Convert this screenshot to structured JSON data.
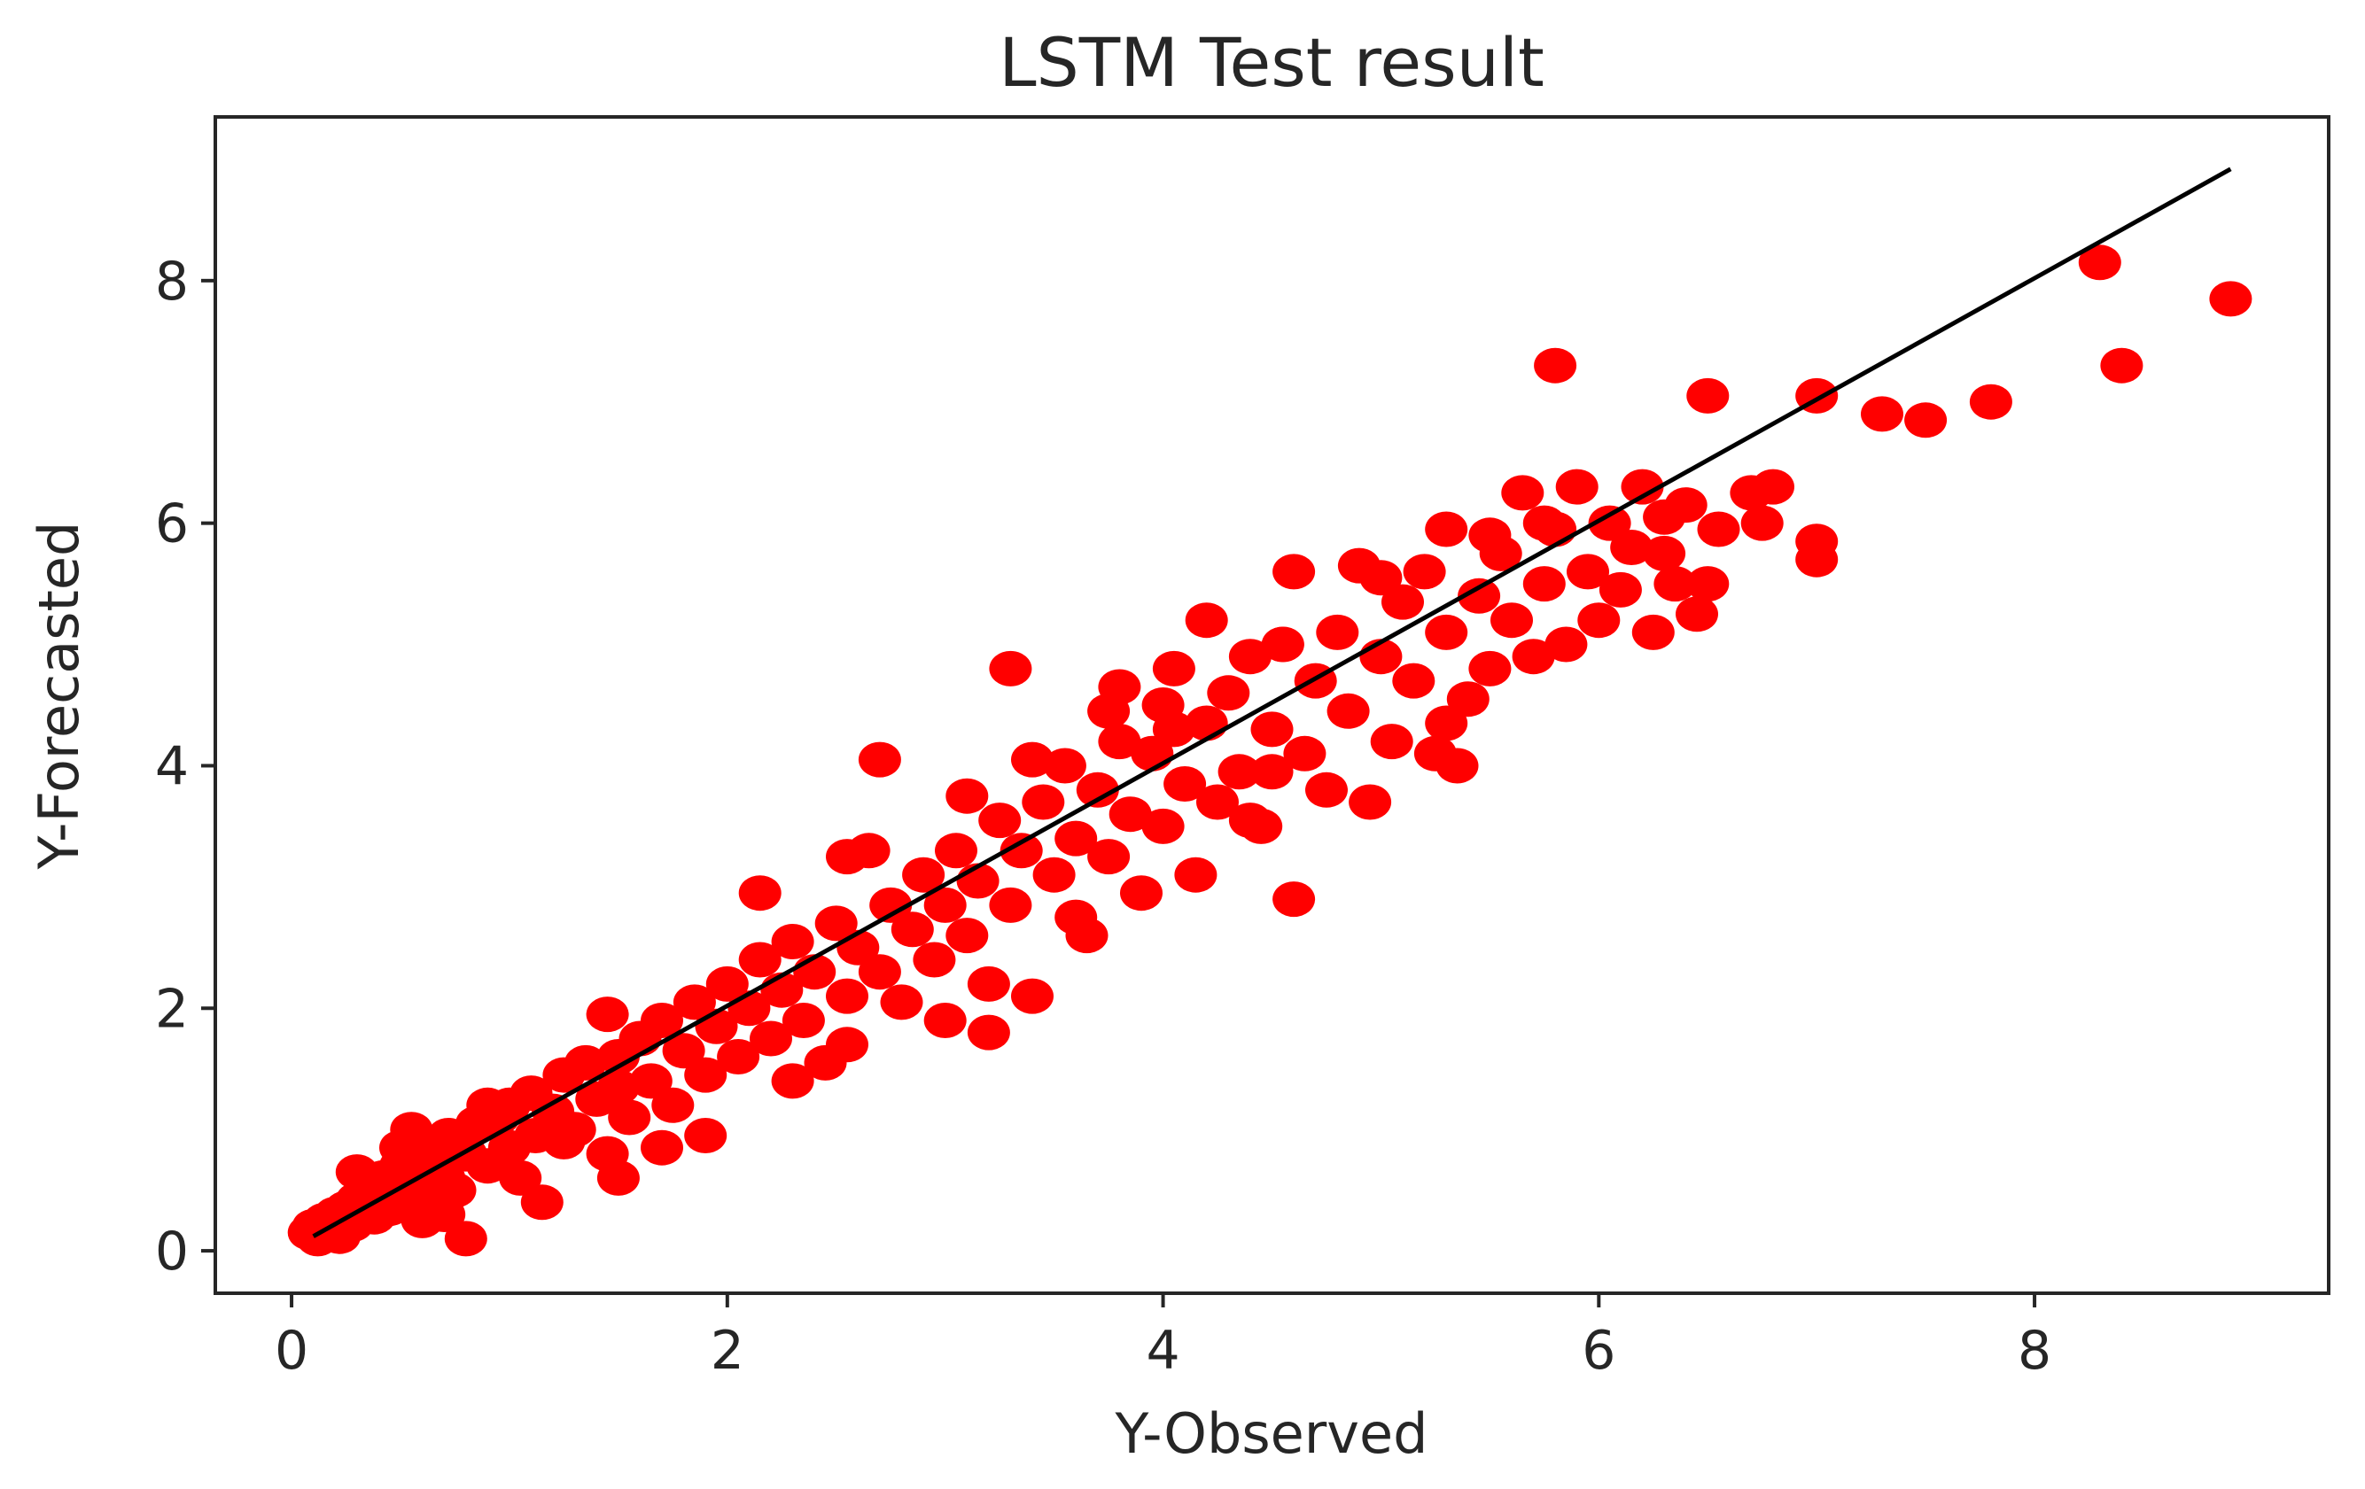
{
  "chart_data": {
    "type": "scatter",
    "title": "LSTM Test result",
    "xlabel": "Y-Observed",
    "ylabel": "Y-Forecasted",
    "xlim": [
      -0.35,
      9.35
    ],
    "ylim": [
      -0.35,
      9.35
    ],
    "x_ticks": [
      0,
      2,
      4,
      6,
      8
    ],
    "y_ticks": [
      0,
      2,
      4,
      6,
      8
    ],
    "tick_labels_x": [
      "0",
      "2",
      "4",
      "6",
      "8"
    ],
    "tick_labels_y": [
      "0",
      "2",
      "4",
      "6",
      "8"
    ],
    "grid": false,
    "legend": "none",
    "colors": {
      "points": "#ff0000",
      "fit_line": "#000000",
      "axes": "#262626"
    },
    "fit_line": {
      "x": [
        0.1,
        8.9
      ],
      "y": [
        0.12,
        8.92
      ]
    },
    "series": [
      {
        "points": [
          [
            0.08,
            0.15
          ],
          [
            0.1,
            0.2
          ],
          [
            0.12,
            0.1
          ],
          [
            0.15,
            0.25
          ],
          [
            0.18,
            0.18
          ],
          [
            0.2,
            0.3
          ],
          [
            0.22,
            0.12
          ],
          [
            0.25,
            0.35
          ],
          [
            0.28,
            0.22
          ],
          [
            0.3,
            0.42
          ],
          [
            0.32,
            0.3
          ],
          [
            0.35,
            0.5
          ],
          [
            0.38,
            0.28
          ],
          [
            0.4,
            0.45
          ],
          [
            0.42,
            0.6
          ],
          [
            0.45,
            0.35
          ],
          [
            0.48,
            0.55
          ],
          [
            0.5,
            0.7
          ],
          [
            0.55,
            0.48
          ],
          [
            0.6,
            0.72
          ],
          [
            0.62,
            0.4
          ],
          [
            0.65,
            0.85
          ],
          [
            0.7,
            0.6
          ],
          [
            0.72,
            0.95
          ],
          [
            0.75,
            0.5
          ],
          [
            0.8,
            0.1
          ],
          [
            0.8,
            0.8
          ],
          [
            0.85,
            1.05
          ],
          [
            0.9,
            0.7
          ],
          [
            0.95,
            1.1
          ],
          [
            1.0,
            0.85
          ],
          [
            1.0,
            1.2
          ],
          [
            1.05,
            0.6
          ],
          [
            1.1,
            1.3
          ],
          [
            1.12,
            0.95
          ],
          [
            1.15,
            0.4
          ],
          [
            1.2,
            1.15
          ],
          [
            1.25,
            1.45
          ],
          [
            1.3,
            1.0
          ],
          [
            1.35,
            1.55
          ],
          [
            1.4,
            1.25
          ],
          [
            1.45,
            0.8
          ],
          [
            1.5,
            1.6
          ],
          [
            1.5,
            1.35
          ],
          [
            1.5,
            0.6
          ],
          [
            1.55,
            1.1
          ],
          [
            1.6,
            1.75
          ],
          [
            1.65,
            1.4
          ],
          [
            1.7,
            1.9
          ],
          [
            1.75,
            1.2
          ],
          [
            1.8,
            1.65
          ],
          [
            1.85,
            2.05
          ],
          [
            1.9,
            1.45
          ],
          [
            1.9,
            0.95
          ],
          [
            1.95,
            1.85
          ],
          [
            2.0,
            2.2
          ],
          [
            2.05,
            1.6
          ],
          [
            2.1,
            2.0
          ],
          [
            2.15,
            2.4
          ],
          [
            2.2,
            1.75
          ],
          [
            2.25,
            2.15
          ],
          [
            2.3,
            2.55
          ],
          [
            2.35,
            1.9
          ],
          [
            2.4,
            2.3
          ],
          [
            2.45,
            1.55
          ],
          [
            2.5,
            2.7
          ],
          [
            2.55,
            2.1
          ],
          [
            2.6,
            2.5
          ],
          [
            2.65,
            3.3
          ],
          [
            2.7,
            2.3
          ],
          [
            2.7,
            4.05
          ],
          [
            2.75,
            2.85
          ],
          [
            2.8,
            2.05
          ],
          [
            2.85,
            2.65
          ],
          [
            2.9,
            3.1
          ],
          [
            2.95,
            2.4
          ],
          [
            3.0,
            2.85
          ],
          [
            3.0,
            1.9
          ],
          [
            3.05,
            3.3
          ],
          [
            3.1,
            2.6
          ],
          [
            3.1,
            3.75
          ],
          [
            3.15,
            3.05
          ],
          [
            3.2,
            1.8
          ],
          [
            3.2,
            2.2
          ],
          [
            3.25,
            3.55
          ],
          [
            3.3,
            2.85
          ],
          [
            3.3,
            4.8
          ],
          [
            3.35,
            3.3
          ],
          [
            3.4,
            2.1
          ],
          [
            3.45,
            3.7
          ],
          [
            3.5,
            3.1
          ],
          [
            3.55,
            4.0
          ],
          [
            3.6,
            3.4
          ],
          [
            3.65,
            2.6
          ],
          [
            3.7,
            3.8
          ],
          [
            3.75,
            3.25
          ],
          [
            3.8,
            4.2
          ],
          [
            3.8,
            4.65
          ],
          [
            3.85,
            3.6
          ],
          [
            3.9,
            2.95
          ],
          [
            3.95,
            4.1
          ],
          [
            4.0,
            3.5
          ],
          [
            4.0,
            4.5
          ],
          [
            4.05,
            4.8
          ],
          [
            4.1,
            3.85
          ],
          [
            4.15,
            3.1
          ],
          [
            4.2,
            4.35
          ],
          [
            4.2,
            5.2
          ],
          [
            4.25,
            3.7
          ],
          [
            4.3,
            4.6
          ],
          [
            4.35,
            3.95
          ],
          [
            4.4,
            4.9
          ],
          [
            4.45,
            3.5
          ],
          [
            4.5,
            4.3
          ],
          [
            4.55,
            5.0
          ],
          [
            4.6,
            2.9
          ],
          [
            4.6,
            5.6
          ],
          [
            4.65,
            4.1
          ],
          [
            4.7,
            4.7
          ],
          [
            4.75,
            3.8
          ],
          [
            4.8,
            5.1
          ],
          [
            4.85,
            4.45
          ],
          [
            4.9,
            5.65
          ],
          [
            4.95,
            3.7
          ],
          [
            5.0,
            4.9
          ],
          [
            5.05,
            4.2
          ],
          [
            5.1,
            5.35
          ],
          [
            5.15,
            4.7
          ],
          [
            5.2,
            5.6
          ],
          [
            5.25,
            4.1
          ],
          [
            5.3,
            5.1
          ],
          [
            5.3,
            5.95
          ],
          [
            5.35,
            4.0
          ],
          [
            5.4,
            4.55
          ],
          [
            5.45,
            5.4
          ],
          [
            5.5,
            4.8
          ],
          [
            5.55,
            5.75
          ],
          [
            5.6,
            5.2
          ],
          [
            5.65,
            6.25
          ],
          [
            5.7,
            4.9
          ],
          [
            5.75,
            5.5
          ],
          [
            5.8,
            7.3
          ],
          [
            5.8,
            5.95
          ],
          [
            5.85,
            5.0
          ],
          [
            5.9,
            6.3
          ],
          [
            5.95,
            5.6
          ],
          [
            6.0,
            5.2
          ],
          [
            6.05,
            6.0
          ],
          [
            6.1,
            5.45
          ],
          [
            6.15,
            5.8
          ],
          [
            6.2,
            6.3
          ],
          [
            6.25,
            5.1
          ],
          [
            6.3,
            5.75
          ],
          [
            6.35,
            5.5
          ],
          [
            6.4,
            6.15
          ],
          [
            6.45,
            5.25
          ],
          [
            6.5,
            7.05
          ],
          [
            6.55,
            5.95
          ],
          [
            6.7,
            6.25
          ],
          [
            6.8,
            6.3
          ],
          [
            7.0,
            7.05
          ],
          [
            7.0,
            5.85
          ],
          [
            7.0,
            5.7
          ],
          [
            7.3,
            6.9
          ],
          [
            7.5,
            6.85
          ],
          [
            7.8,
            7.0
          ],
          [
            8.3,
            8.15
          ],
          [
            8.4,
            7.3
          ],
          [
            8.9,
            7.85
          ],
          [
            0.6,
            0.25
          ],
          [
            0.7,
            0.3
          ],
          [
            1.25,
            0.9
          ],
          [
            1.7,
            0.85
          ],
          [
            2.3,
            1.4
          ],
          [
            2.55,
            1.7
          ],
          [
            3.6,
            2.75
          ],
          [
            4.4,
            3.55
          ],
          [
            4.5,
            3.95
          ],
          [
            5.3,
            4.35
          ],
          [
            5.5,
            5.9
          ],
          [
            6.3,
            6.05
          ],
          [
            6.5,
            5.5
          ],
          [
            6.75,
            6.0
          ],
          [
            0.3,
            0.65
          ],
          [
            0.5,
            0.85
          ],
          [
            0.55,
            1.0
          ],
          [
            0.9,
            1.2
          ],
          [
            1.45,
            1.95
          ],
          [
            2.15,
            2.95
          ],
          [
            2.55,
            3.25
          ],
          [
            3.4,
            4.05
          ],
          [
            3.75,
            4.45
          ],
          [
            4.05,
            4.3
          ],
          [
            4.55,
            5.0
          ],
          [
            5.0,
            5.55
          ],
          [
            5.75,
            6.0
          ]
        ]
      }
    ]
  }
}
